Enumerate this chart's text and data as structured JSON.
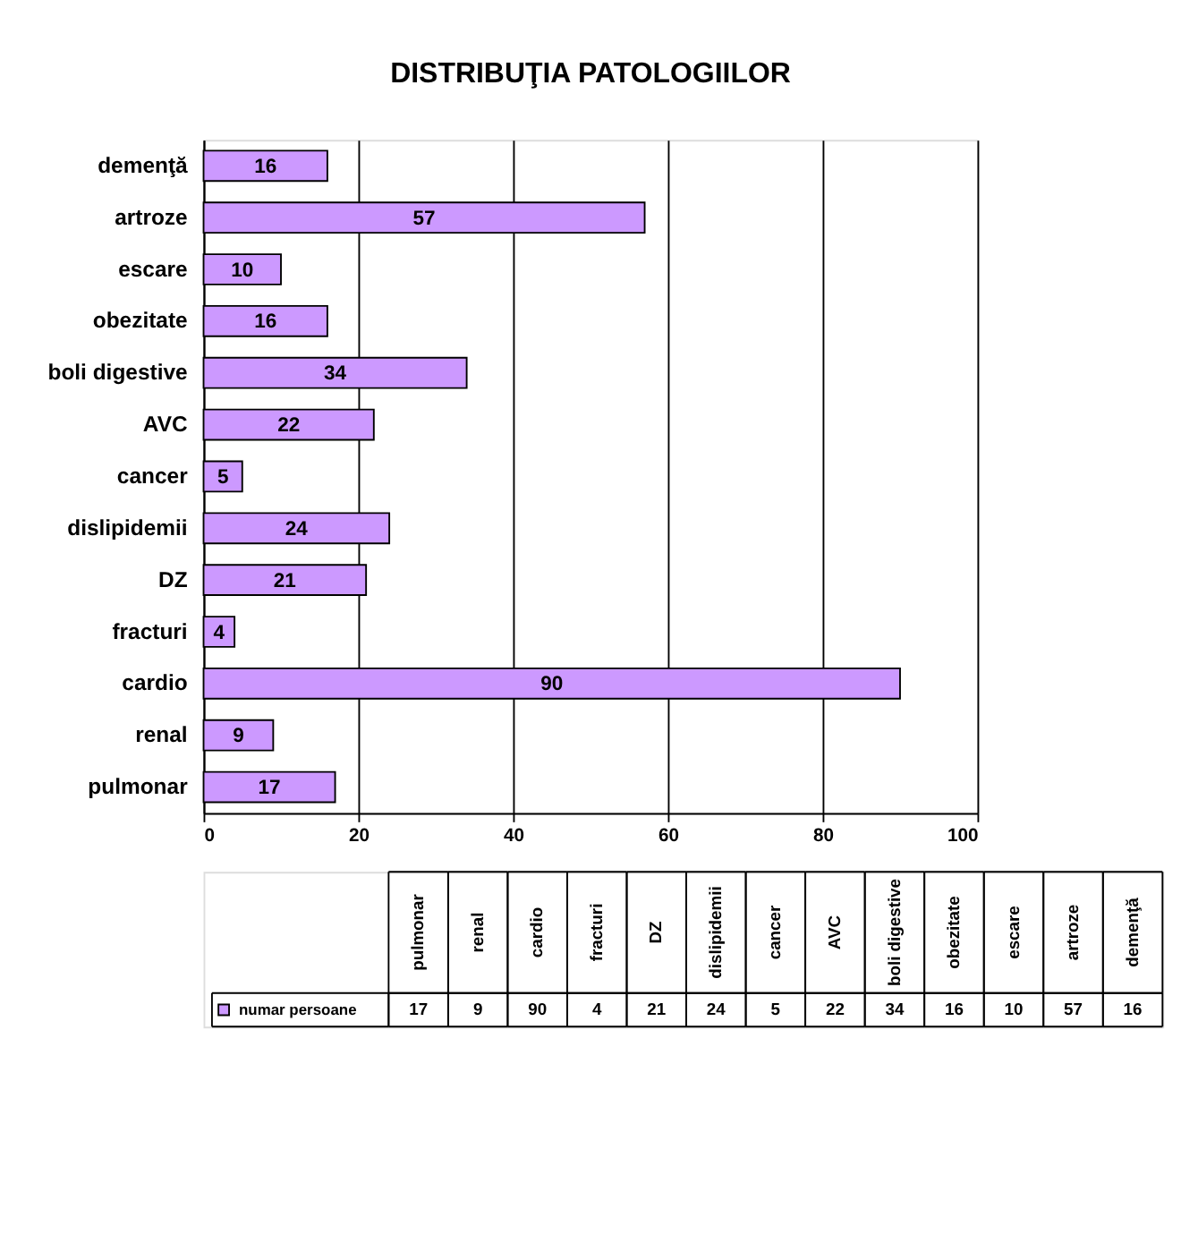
{
  "chart_data": [
    {
      "type": "bar",
      "title": "DISTRIBUŢIA PATOLOGIILOR",
      "orientation": "horizontal",
      "categories": [
        "demenţă",
        "artroze",
        "escare",
        "obezitate",
        "boli digestive",
        "AVC",
        "cancer",
        "dislipidemii",
        "DZ",
        "fracturi",
        "cardio",
        "renal",
        "pulmonar"
      ],
      "series": [
        {
          "color": "#cc99ff",
          "values": [
            16,
            57,
            10,
            16,
            34,
            22,
            5,
            24,
            21,
            4,
            90,
            9,
            17
          ]
        }
      ],
      "xlim": [
        0,
        100
      ],
      "xticks": [
        0,
        20,
        40,
        60,
        80,
        100
      ],
      "grid": "x",
      "data_labels": true
    },
    {
      "type": "other",
      "categories": [
        "pulmonar",
        "renal",
        "cardio",
        "fracturi",
        "DZ",
        "dislipidemii",
        "cancer",
        "AVC",
        "boli digestive",
        "obezitate",
        "escare",
        "artroze",
        "demenţă"
      ],
      "series": [
        {
          "name": "numar persoane",
          "color": "#cc99ff",
          "values": [
            17,
            9,
            90,
            4,
            21,
            24,
            5,
            22,
            34,
            16,
            10,
            57,
            16
          ]
        }
      ],
      "data_labels": true,
      "legend": "left"
    }
  ]
}
